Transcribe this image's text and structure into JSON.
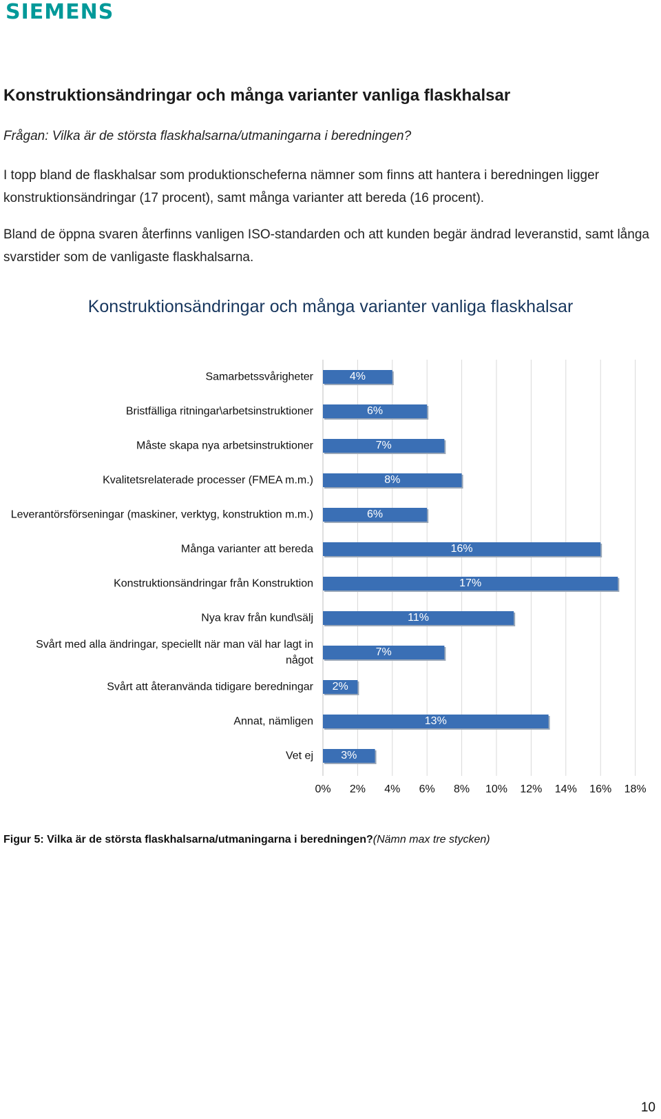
{
  "header": {
    "logo_text": "SIEMENS",
    "logo_color": "#009999"
  },
  "heading": "Konstruktionsändringar och många varianter vanliga flaskhalsar",
  "question": "Frågan: Vilka är de största flaskhalsarna/utmaningarna i beredningen?",
  "paragraphs": [
    "I topp bland de flaskhalsar som produktionscheferna nämner som finns att hantera i beredningen ligger konstruktionsändringar (17 procent), samt många varianter att bereda (16 procent).",
    "Bland de öppna svaren återfinns vanligen ISO-standarden och att kunden begär ändrad leveranstid, samt långa svarstider som de vanligaste flaskhalsarna."
  ],
  "chart_data": {
    "type": "bar",
    "orientation": "horizontal",
    "title": "Konstruktionsändringar och många varianter vanliga flaskhalsar",
    "categories": [
      "Samarbetssvårigheter",
      "Bristfälliga ritningar\\arbetsinstruktioner",
      "Måste skapa nya arbetsinstruktioner",
      "Kvalitetsrelaterade processer (FMEA m.m.)",
      "Leverantörsförseningar (maskiner, verktyg, konstruktion m.m.)",
      "Många varianter att bereda",
      "Konstruktionsändringar från Konstruktion",
      "Nya krav från kund\\sälj",
      "Svårt med alla ändringar, speciellt när man väl har lagt in något",
      "Svårt att återanvända tidigare beredningar",
      "Annat, nämligen",
      "Vet ej"
    ],
    "values": [
      4,
      6,
      7,
      8,
      6,
      16,
      17,
      11,
      7,
      2,
      13,
      3
    ],
    "value_labels": [
      "4%",
      "6%",
      "7%",
      "8%",
      "6%",
      "16%",
      "17%",
      "11%",
      "7%",
      "2%",
      "13%",
      "3%"
    ],
    "xlim": [
      0,
      18
    ],
    "xticks": [
      "0%",
      "2%",
      "4%",
      "6%",
      "8%",
      "10%",
      "12%",
      "14%",
      "16%",
      "18%"
    ],
    "grid": true,
    "bar_color": "#3a6fb5",
    "legend": "none"
  },
  "caption": {
    "bold": "Figur 5: Vilka är de största flaskhalsarna/utmaningarna i beredningen?",
    "italic": "(Nämn max tre stycken)"
  },
  "page_number": "10"
}
